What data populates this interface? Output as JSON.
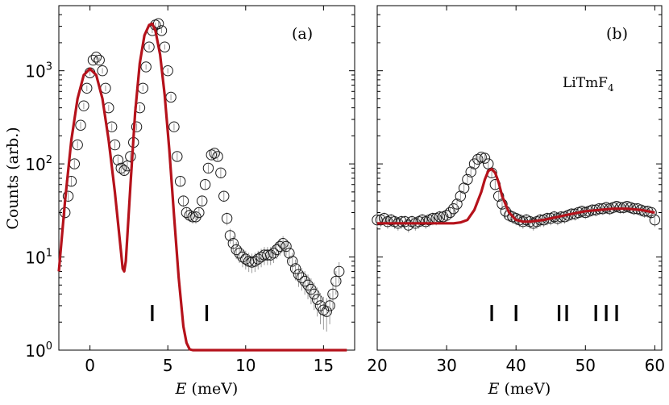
{
  "chart_data": [
    {
      "panel": "(a)",
      "type": "scatter",
      "xlabel_italic": "E",
      "xlabel_unit": "(meV)",
      "ylabel": "Counts (arb.)",
      "y_scale": "log",
      "xlim": [
        -2,
        17
      ],
      "ylim": [
        1,
        5000
      ],
      "x_ticks": [
        0,
        5,
        10,
        15
      ],
      "y_ticks": [
        {
          "value": 1,
          "base": "10",
          "exp": "0"
        },
        {
          "value": 10,
          "base": "10",
          "exp": "1"
        },
        {
          "value": 100,
          "base": "10",
          "exp": "2"
        },
        {
          "value": 1000,
          "base": "10",
          "exp": "3"
        }
      ],
      "grid": false,
      "legend": "none",
      "series": [
        {
          "kind": "data",
          "marker": "open-circle",
          "color": "#000000",
          "x": [
            -1.6,
            -1.4,
            -1.2,
            -1.0,
            -0.8,
            -0.6,
            -0.4,
            -0.2,
            0.0,
            0.2,
            0.4,
            0.6,
            0.8,
            1.0,
            1.2,
            1.4,
            1.6,
            1.8,
            2.0,
            2.2,
            2.4,
            2.6,
            2.8,
            3.0,
            3.2,
            3.4,
            3.6,
            3.8,
            4.0,
            4.2,
            4.4,
            4.6,
            4.8,
            5.0,
            5.2,
            5.4,
            5.6,
            5.8,
            6.0,
            6.2,
            6.4,
            6.6,
            6.8,
            7.0,
            7.2,
            7.4,
            7.6,
            7.8,
            8.0,
            8.2,
            8.4,
            8.6,
            8.8,
            9.0,
            9.2,
            9.4,
            9.6,
            9.8,
            10.0,
            10.2,
            10.4,
            10.6,
            10.8,
            11.0,
            11.2,
            11.4,
            11.6,
            11.8,
            12.0,
            12.2,
            12.4,
            12.6,
            12.8,
            13.0,
            13.2,
            13.4,
            13.6,
            13.8,
            14.0,
            14.2,
            14.4,
            14.6,
            14.8,
            15.0,
            15.2,
            15.4,
            15.6,
            15.8,
            16.0
          ],
          "y": [
            30,
            45,
            65,
            100,
            160,
            260,
            420,
            650,
            950,
            1300,
            1400,
            1300,
            1000,
            650,
            400,
            250,
            160,
            110,
            90,
            85,
            95,
            120,
            170,
            250,
            400,
            650,
            1100,
            1800,
            2700,
            3100,
            3200,
            2700,
            1800,
            1000,
            520,
            250,
            120,
            65,
            40,
            30,
            28,
            27,
            27,
            30,
            40,
            60,
            90,
            125,
            130,
            120,
            80,
            45,
            26,
            17,
            14,
            12,
            11,
            10,
            9.5,
            9.0,
            8.8,
            9.0,
            9.5,
            10,
            10.5,
            10.5,
            10.5,
            11,
            12,
            13,
            14,
            13,
            11,
            9,
            7.5,
            6.5,
            6.0,
            5.5,
            5.0,
            4.5,
            4.0,
            3.5,
            3.0,
            2.7,
            2.6,
            3.0,
            4.0,
            5.5,
            7.0
          ],
          "error_bars": true
        },
        {
          "kind": "fit",
          "style": "line",
          "color": "#b5121b",
          "x": [
            -2.0,
            -1.6,
            -1.2,
            -0.8,
            -0.4,
            0.0,
            0.4,
            0.8,
            1.2,
            1.6,
            2.0,
            2.1,
            2.2,
            2.3,
            2.6,
            2.9,
            3.2,
            3.5,
            3.8,
            4.0,
            4.2,
            4.5,
            4.8,
            5.1,
            5.4,
            5.7,
            6.0,
            6.2,
            6.4,
            6.6,
            7.0,
            8.0,
            10.0,
            12.0,
            14.0,
            16.0,
            16.5
          ],
          "y": [
            7,
            40,
            180,
            500,
            900,
            1050,
            900,
            500,
            180,
            50,
            11,
            7.5,
            7,
            9,
            60,
            350,
            1200,
            2400,
            3100,
            3200,
            2700,
            1500,
            550,
            140,
            28,
            6,
            1.8,
            1.2,
            1.02,
            1.0,
            1.0,
            1.0,
            1.0,
            1.0,
            1.0,
            1.0,
            1.0
          ]
        }
      ],
      "markers": [
        4,
        7.5
      ]
    },
    {
      "panel": "(b)",
      "type": "scatter",
      "label": "LiTmF",
      "label_sub": "4",
      "xlabel_italic": "E",
      "xlabel_unit": "(meV)",
      "y_scale": "log",
      "xlim": [
        20,
        61
      ],
      "ylim": [
        1,
        5000
      ],
      "x_ticks": [
        20,
        30,
        40,
        50,
        60
      ],
      "grid": false,
      "legend": "none",
      "series": [
        {
          "kind": "data",
          "marker": "open-circle",
          "color": "#000000",
          "x": [
            20,
            20.5,
            21,
            21.5,
            22,
            22.5,
            23,
            23.5,
            24,
            24.5,
            25,
            25.5,
            26,
            26.5,
            27,
            27.5,
            28,
            28.5,
            29,
            29.5,
            30,
            30.5,
            31,
            31.5,
            32,
            32.5,
            33,
            33.5,
            34,
            34.5,
            35,
            35.5,
            36,
            36.5,
            37,
            37.5,
            38,
            38.5,
            39,
            39.5,
            40,
            40.5,
            41,
            41.5,
            42,
            42.5,
            43,
            43.5,
            44,
            44.5,
            45,
            45.5,
            46,
            46.5,
            47,
            47.5,
            48,
            48.5,
            49,
            49.5,
            50,
            50.5,
            51,
            51.5,
            52,
            52.5,
            53,
            53.5,
            54,
            54.5,
            55,
            55.5,
            56,
            56.5,
            57,
            57.5,
            58,
            58.5,
            59,
            59.5,
            60
          ],
          "y": [
            25,
            25,
            26,
            24,
            25,
            24,
            23,
            24,
            24,
            22,
            24,
            23,
            24,
            25,
            24,
            25,
            26,
            26,
            27,
            27,
            28,
            30,
            33,
            37,
            45,
            55,
            68,
            82,
            100,
            112,
            118,
            115,
            100,
            80,
            60,
            45,
            37,
            31,
            28,
            27,
            26,
            25,
            24,
            25,
            24,
            23,
            24,
            25,
            25,
            26,
            26,
            27,
            26,
            27,
            27,
            28,
            29,
            29,
            30,
            31,
            30,
            31,
            32,
            32,
            33,
            33,
            34,
            33,
            34,
            35,
            34,
            34,
            35,
            34,
            33,
            33,
            32,
            31,
            31,
            30,
            25
          ],
          "error_bars": true
        },
        {
          "kind": "fit",
          "style": "line",
          "color": "#b5121b",
          "x": [
            20,
            24,
            28,
            30,
            31,
            32,
            33,
            34,
            35,
            35.5,
            36,
            36.5,
            37,
            37.5,
            38,
            39,
            40,
            41,
            42,
            44,
            46,
            48,
            50,
            52,
            54,
            56,
            58,
            60
          ],
          "y": [
            23,
            23,
            23,
            23,
            23,
            23.5,
            25,
            32,
            50,
            68,
            84,
            88,
            80,
            63,
            45,
            30,
            25,
            24,
            24,
            25,
            27,
            29,
            31,
            32,
            33,
            33,
            32,
            30
          ]
        }
      ],
      "markers": [
        36.5,
        40,
        46.2,
        47.3,
        51.5,
        53,
        54.5
      ]
    }
  ]
}
